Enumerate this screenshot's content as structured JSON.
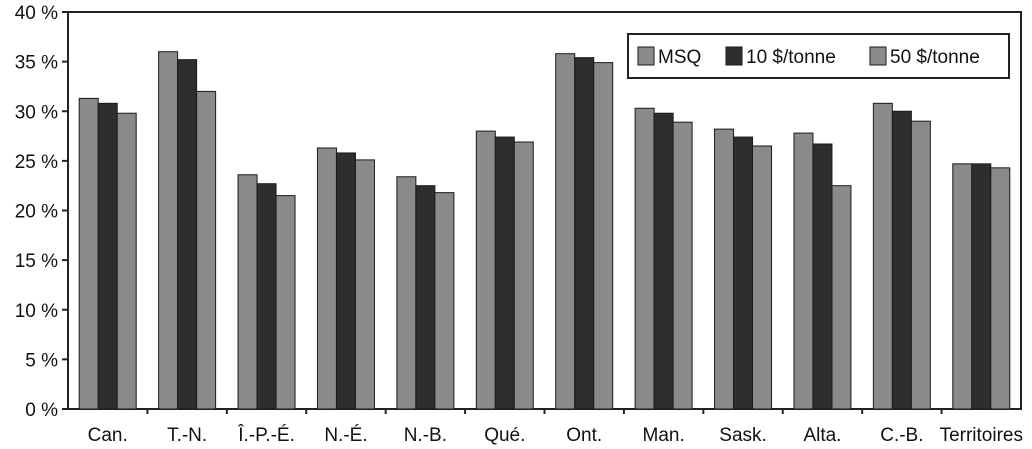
{
  "chart_data": {
    "type": "bar",
    "categories": [
      "Can.",
      "T.-N.",
      "Î.-P.-É.",
      "N.-É.",
      "N.-B.",
      "Qué.",
      "Ont.",
      "Man.",
      "Sask.",
      "Alta.",
      "C.-B.",
      "Territoires"
    ],
    "series": [
      {
        "name": "MSQ",
        "color": "#8a8a8a",
        "values": [
          31.3,
          36.0,
          23.6,
          26.3,
          23.4,
          28.0,
          35.8,
          30.3,
          28.2,
          27.8,
          30.8,
          24.7
        ]
      },
      {
        "name": "10 $/tonne",
        "color": "#2e2e2e",
        "values": [
          30.8,
          35.2,
          22.7,
          25.8,
          22.5,
          27.4,
          35.4,
          29.8,
          27.4,
          26.7,
          30.0,
          24.7
        ]
      },
      {
        "name": "50 $/tonne",
        "color": "#8a8a8a",
        "values": [
          29.8,
          32.0,
          21.5,
          25.1,
          21.8,
          26.9,
          34.9,
          28.9,
          26.5,
          22.5,
          29.0,
          24.3
        ]
      }
    ],
    "y_ticks": [
      "0 %",
      "5 %",
      "10 %",
      "15 %",
      "20 %",
      "25 %",
      "30 %",
      "35 %",
      "40 %"
    ],
    "ylim": [
      0,
      40
    ],
    "grid": false,
    "legend_position": "top-right"
  }
}
